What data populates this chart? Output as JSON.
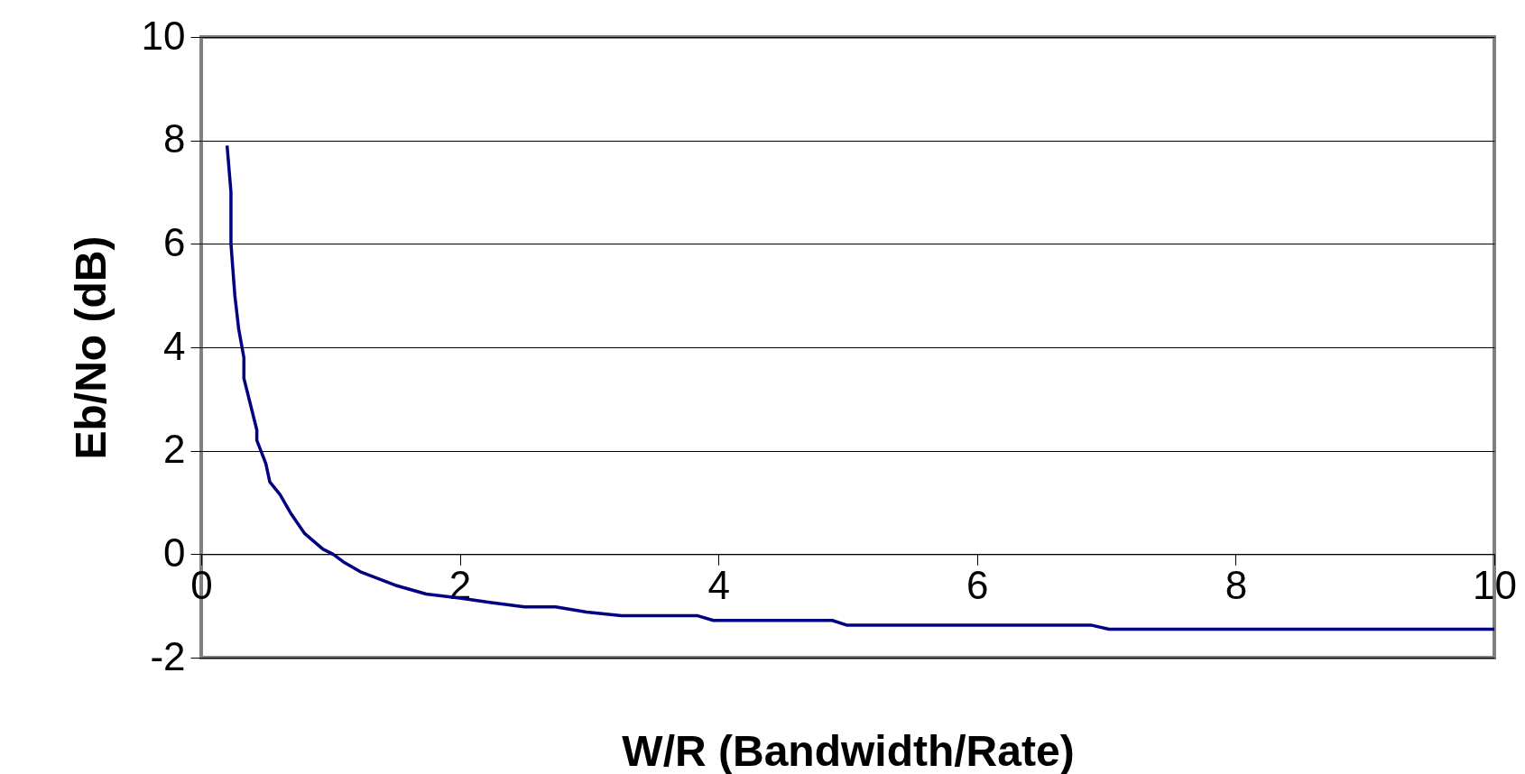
{
  "chart_data": {
    "type": "line",
    "xlabel": "W/R (Bandwidth/Rate)",
    "ylabel": "Eb/No (dB)",
    "x": [
      0.2,
      0.23,
      0.23,
      0.26,
      0.29,
      0.33,
      0.33,
      0.4,
      0.43,
      0.43,
      0.5,
      0.53,
      0.61,
      0.69,
      0.8,
      0.94,
      1.02,
      1.1,
      1.24,
      1.5,
      1.74,
      2.0,
      2.23,
      2.5,
      2.74,
      2.98,
      3.25,
      3.84,
      3.96,
      4.88,
      4.99,
      6.88,
      7.02,
      10
    ],
    "series": [
      {
        "color": "#000080",
        "values": [
          7.9,
          7.0,
          6.0,
          5.0,
          4.35,
          3.8,
          3.4,
          2.7,
          2.4,
          2.2,
          1.75,
          1.4,
          1.15,
          0.8,
          0.4,
          0.1,
          0.0,
          -0.15,
          -0.35,
          -0.6,
          -0.77,
          -0.85,
          -0.93,
          -1.02,
          -1.02,
          -1.12,
          -1.19,
          -1.19,
          -1.28,
          -1.28,
          -1.37,
          -1.37,
          -1.45,
          -1.45
        ]
      }
    ],
    "xlim": [
      0,
      10
    ],
    "xticks": [
      0,
      2,
      4,
      6,
      8,
      10
    ],
    "ylim": [
      -2,
      10
    ],
    "yticks": [
      -2,
      0,
      2,
      4,
      6,
      8,
      10
    ],
    "grid": "y",
    "marker": "none",
    "line_style": "solid",
    "legend": false
  }
}
